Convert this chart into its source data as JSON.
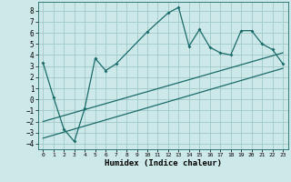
{
  "xlabel": "Humidex (Indice chaleur)",
  "xlim": [
    -0.5,
    23.5
  ],
  "ylim": [
    -4.5,
    8.8
  ],
  "xticks": [
    0,
    1,
    2,
    3,
    4,
    5,
    6,
    7,
    8,
    9,
    10,
    11,
    12,
    13,
    14,
    15,
    16,
    17,
    18,
    19,
    20,
    21,
    22,
    23
  ],
  "yticks": [
    -4,
    -3,
    -2,
    -1,
    0,
    1,
    2,
    3,
    4,
    5,
    6,
    7,
    8
  ],
  "bg_color": "#cde8e8",
  "grid_color": "#a0c8c8",
  "line_color": "#1a6b6b",
  "scatter_x": [
    0,
    1,
    2,
    3,
    4,
    5,
    6,
    7,
    10,
    12,
    13,
    14,
    15,
    16,
    17,
    18,
    19,
    20,
    21,
    22,
    23
  ],
  "scatter_y": [
    3.3,
    0.2,
    -2.7,
    -3.8,
    -0.8,
    3.7,
    2.6,
    3.2,
    6.1,
    7.8,
    8.3,
    4.8,
    6.3,
    4.7,
    4.2,
    4.0,
    6.2,
    6.2,
    5.0,
    4.5,
    3.2
  ],
  "line1_x": [
    0,
    23
  ],
  "line1_y": [
    -2.0,
    4.2
  ],
  "line2_x": [
    0,
    23
  ],
  "line2_y": [
    -3.5,
    2.8
  ],
  "font_family": "monospace"
}
